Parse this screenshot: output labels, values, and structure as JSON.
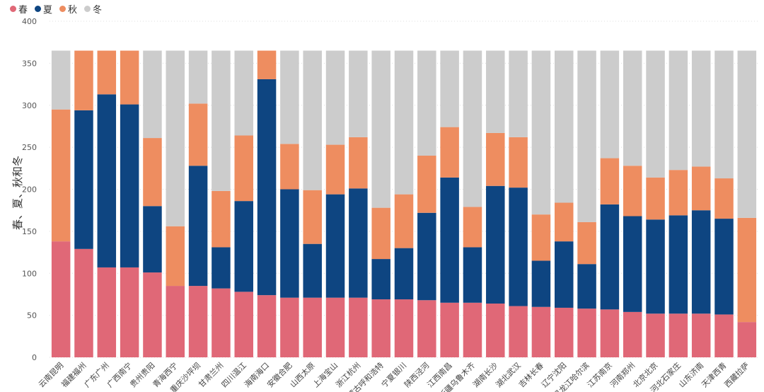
{
  "chart_data": {
    "type": "bar",
    "stacked": true,
    "ylabel": "春、夏、秋和冬",
    "ylim": [
      0,
      400
    ],
    "yticks": [
      0,
      50,
      100,
      150,
      200,
      250,
      300,
      350,
      400
    ],
    "grid": true,
    "legend_position": "top-left",
    "categories": [
      "云南昆明",
      "福建福州",
      "广东广州",
      "广西南宁",
      "贵州贵阳",
      "青海西宁",
      "重庆沙坪坝",
      "甘肃兰州",
      "四川温江",
      "海南海口",
      "安徽合肥",
      "山西太原",
      "上海宝山",
      "浙江杭州",
      "内蒙古呼和浩特",
      "宁夏银川",
      "陕西泾河",
      "江西南昌",
      "新疆乌鲁木齐",
      "湖南长沙",
      "湖北武汉",
      "吉林长春",
      "辽宁沈阳",
      "黑龙江哈尔滨",
      "江苏南京",
      "河南郑州",
      "北京北京",
      "河北石家庄",
      "山东济南",
      "天津西青",
      "西藏拉萨"
    ],
    "series": [
      {
        "name": "春",
        "color": "#e06877",
        "values": [
          138,
          129,
          107,
          107,
          101,
          85,
          85,
          82,
          78,
          74,
          71,
          71,
          71,
          71,
          69,
          69,
          68,
          65,
          65,
          64,
          61,
          60,
          59,
          58,
          57,
          54,
          52,
          52,
          52,
          51,
          42
        ]
      },
      {
        "name": "夏",
        "color": "#0e4581",
        "values": [
          0,
          165,
          206,
          194,
          79,
          0,
          143,
          49,
          108,
          257,
          129,
          64,
          123,
          130,
          48,
          61,
          104,
          149,
          66,
          140,
          141,
          55,
          79,
          53,
          125,
          114,
          112,
          117,
          123,
          114,
          0
        ]
      },
      {
        "name": "秋",
        "color": "#ee8d60",
        "values": [
          157,
          71,
          52,
          64,
          81,
          71,
          74,
          67,
          78,
          34,
          54,
          64,
          59,
          61,
          61,
          64,
          68,
          60,
          48,
          63,
          60,
          55,
          46,
          50,
          55,
          60,
          50,
          54,
          52,
          48,
          124
        ]
      },
      {
        "name": "冬",
        "color": "#cccccc",
        "values": [
          70,
          0,
          0,
          0,
          104,
          209,
          63,
          167,
          101,
          0,
          111,
          166,
          112,
          103,
          187,
          171,
          125,
          91,
          186,
          98,
          103,
          195,
          181,
          204,
          128,
          137,
          151,
          142,
          138,
          152,
          199
        ]
      }
    ]
  }
}
